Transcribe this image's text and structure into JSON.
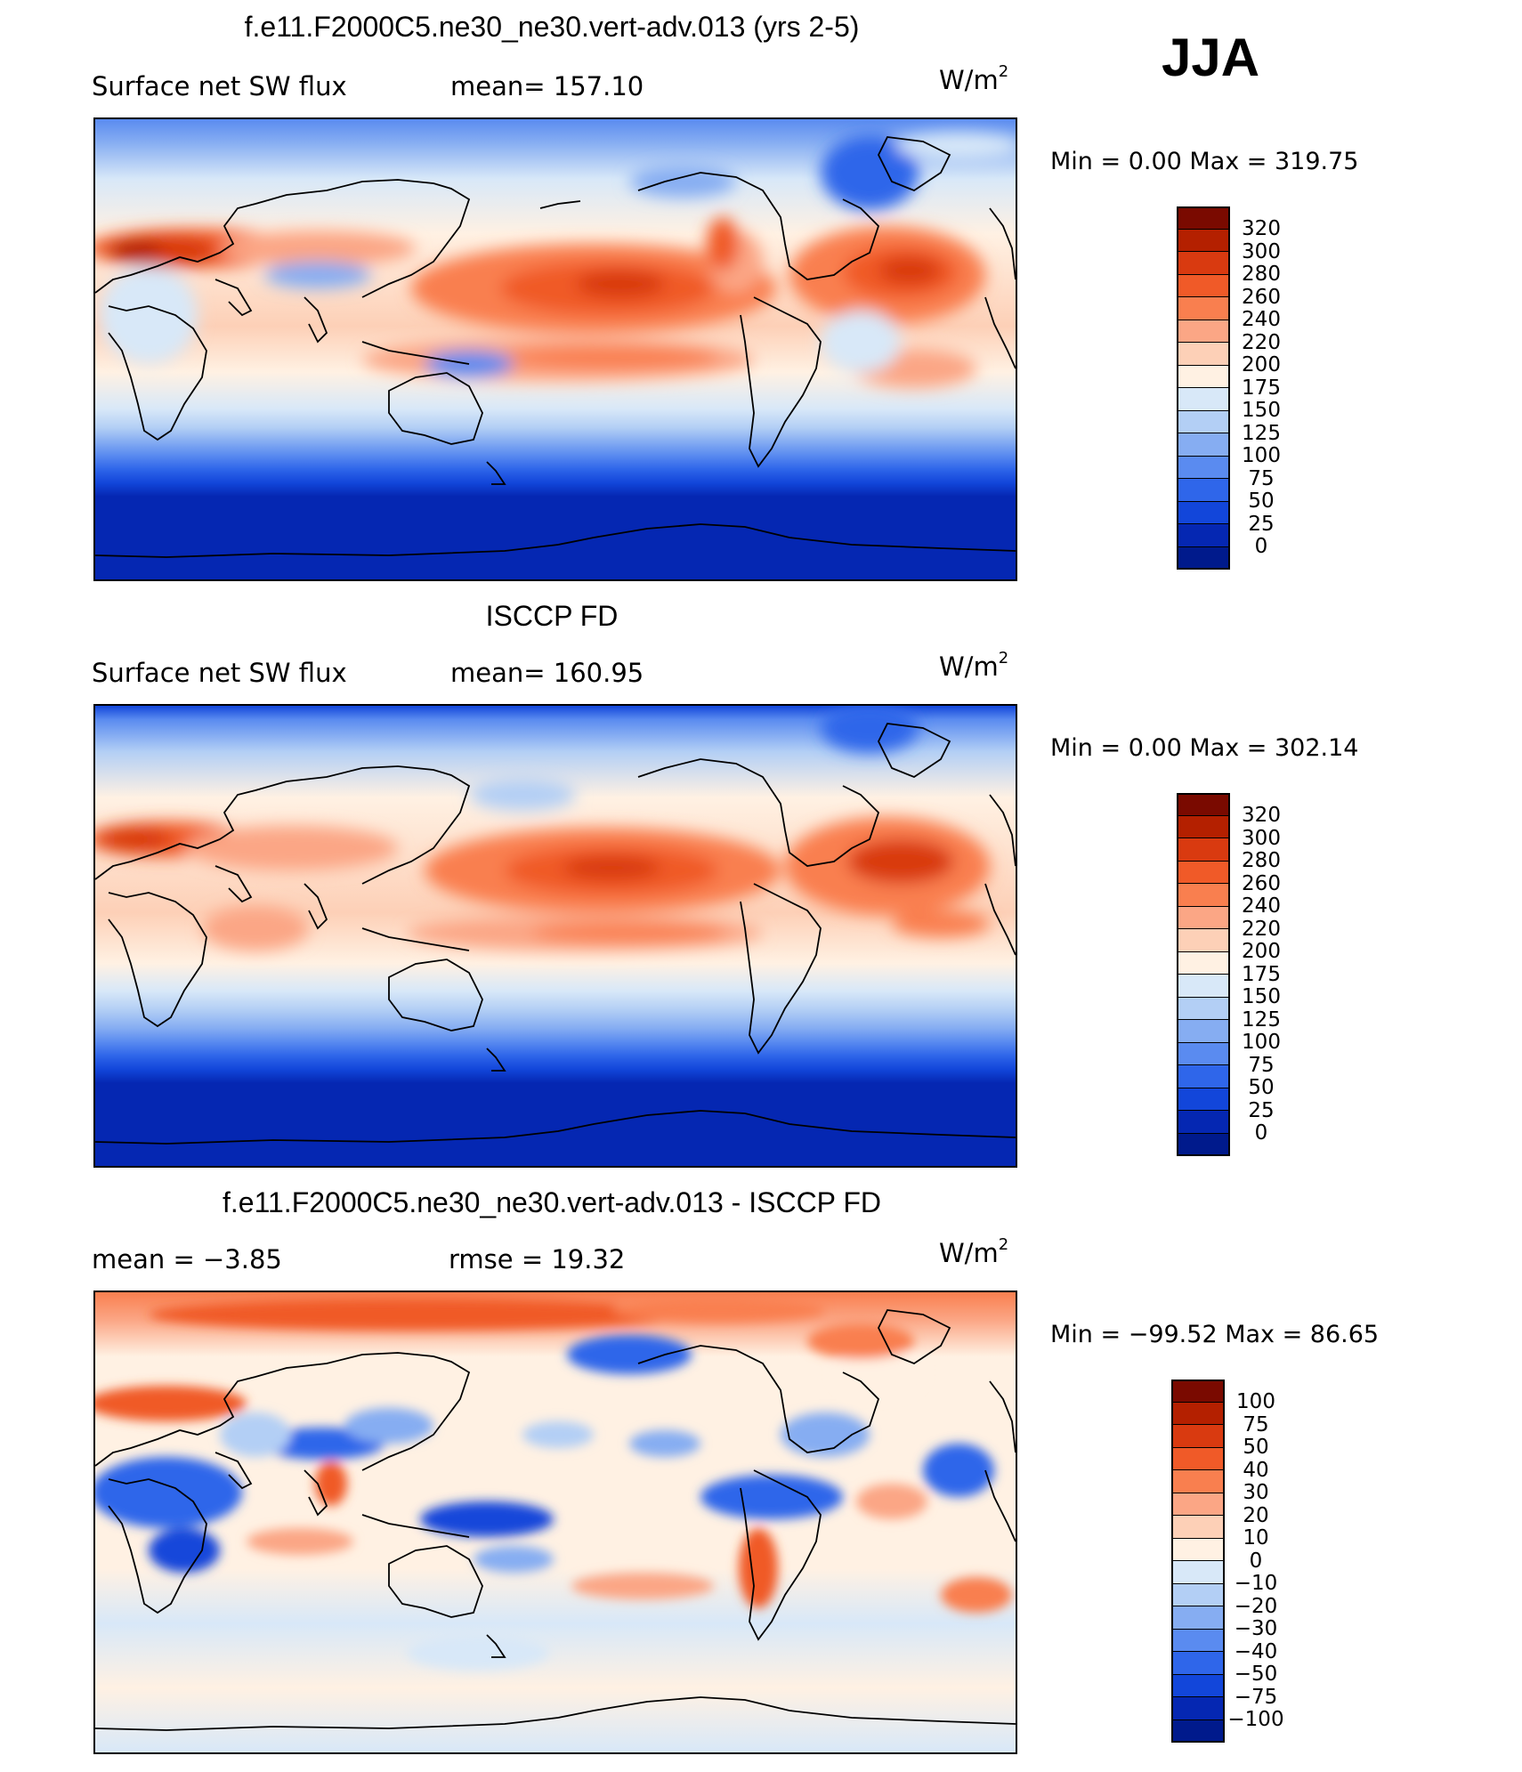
{
  "season": "JJA",
  "panels": [
    {
      "title": "f.e11.F2000C5.ne30_ne30.vert-adv.013 (yrs 2-5)",
      "left_label": "Surface net SW flux",
      "mid_label": "mean=  157.10",
      "units_base": "W/m",
      "units_exp": "2",
      "minmax": "Min  =      0.00  Max  =  319.75"
    },
    {
      "title": "ISCCP FD",
      "left_label": "Surface net SW flux",
      "mid_label": "mean=  160.95",
      "units_base": "W/m",
      "units_exp": "2",
      "minmax": "Min  =      0.00  Max  =  302.14"
    },
    {
      "title": "f.e11.F2000C5.ne30_ne30.vert-adv.013 - ISCCP FD",
      "left_label": "mean  =    −3.85",
      "mid_label": "rmse  =    19.32",
      "units_base": "W/m",
      "units_exp": "2",
      "minmax": "Min  = −99.52  Max  =    86.65"
    }
  ],
  "chart_data": [
    {
      "type": "heatmap",
      "title": "f.e11.F2000C5.ne30_ne30.vert-adv.013 (yrs 2-5)",
      "variable": "Surface net SW flux",
      "units": "W/m2",
      "mean": 157.1,
      "min": 0.0,
      "max": 319.75,
      "colorbar_levels": [
        "320",
        "300",
        "280",
        "260",
        "240",
        "220",
        "200",
        "175",
        "150",
        "125",
        "100",
        "75",
        "50",
        "25",
        "0"
      ],
      "colorbar_colors": [
        "#7a0a00",
        "#b42000",
        "#d93a10",
        "#f05a28",
        "#f97f4f",
        "#fba685",
        "#fdd0b7",
        "#fff1e3",
        "#d8e8f8",
        "#b3cff5",
        "#86adf2",
        "#5a8bf0",
        "#2f66ea",
        "#1246da",
        "#0527b2",
        "#001a8c"
      ]
    },
    {
      "type": "heatmap",
      "title": "ISCCP FD",
      "variable": "Surface net SW flux",
      "units": "W/m2",
      "mean": 160.95,
      "min": 0.0,
      "max": 302.14,
      "colorbar_levels": [
        "320",
        "300",
        "280",
        "260",
        "240",
        "220",
        "200",
        "175",
        "150",
        "125",
        "100",
        "75",
        "50",
        "25",
        "0"
      ],
      "colorbar_colors": [
        "#7a0a00",
        "#b42000",
        "#d93a10",
        "#f05a28",
        "#f97f4f",
        "#fba685",
        "#fdd0b7",
        "#fff1e3",
        "#d8e8f8",
        "#b3cff5",
        "#86adf2",
        "#5a8bf0",
        "#2f66ea",
        "#1246da",
        "#0527b2",
        "#001a8c"
      ]
    },
    {
      "type": "heatmap",
      "title": "f.e11.F2000C5.ne30_ne30.vert-adv.013 - ISCCP FD",
      "variable": "difference",
      "units": "W/m2",
      "mean": -3.85,
      "rmse": 19.32,
      "min": -99.52,
      "max": 86.65,
      "colorbar_levels": [
        "100",
        "75",
        "50",
        "40",
        "30",
        "20",
        "10",
        "0",
        "−10",
        "−20",
        "−30",
        "−40",
        "−50",
        "−75",
        "−100"
      ],
      "colorbar_colors": [
        "#7a0a00",
        "#b42000",
        "#d93a10",
        "#f05a28",
        "#f97f4f",
        "#fba685",
        "#fdd0b7",
        "#fff1e3",
        "#d8e8f8",
        "#b3cff5",
        "#86adf2",
        "#5a8bf0",
        "#2f66ea",
        "#1246da",
        "#0527b2",
        "#001a8c"
      ]
    }
  ]
}
